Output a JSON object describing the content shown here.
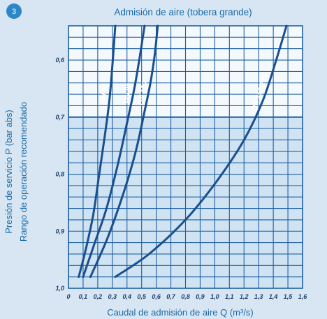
{
  "badge": "3",
  "chart_data": {
    "type": "line",
    "title": "Admisión de aire (tobera grande)",
    "xlabel": "Caudal de admisión de aire Q (m³/s)",
    "ylabel": "Presión de servicio P (bar abs)",
    "ylabel2": "Rango de operación recomendado",
    "xlim": [
      0,
      1.6
    ],
    "ylim": [
      1.0,
      0.54
    ],
    "y_inverted": true,
    "x_ticks": [
      "0",
      "0,1",
      "0,2",
      "0,3",
      "0,4",
      "0,5",
      "0,6",
      "0,7",
      "0,8",
      "0,9",
      "1,0",
      "1,1",
      "1,2",
      "1,3",
      "1,4",
      "1,5",
      "1,6"
    ],
    "y_ticks": [
      "0,6",
      "0,7",
      "0,8",
      "0,9",
      "1,0"
    ],
    "y_tick_values": [
      0.6,
      0.7,
      0.8,
      0.9,
      1.0
    ],
    "recommended_range": [
      0.7,
      1.0
    ],
    "grid": true,
    "series": [
      {
        "name": "DN 50",
        "x": [
          0.07,
          0.12,
          0.17,
          0.21,
          0.25,
          0.28,
          0.3,
          0.32
        ],
        "y": [
          0.98,
          0.93,
          0.87,
          0.8,
          0.73,
          0.67,
          0.61,
          0.54
        ]
      },
      {
        "name": "DN 80",
        "x": [
          0.1,
          0.18,
          0.26,
          0.34,
          0.4,
          0.45,
          0.49,
          0.52
        ],
        "y": [
          0.98,
          0.92,
          0.86,
          0.78,
          0.71,
          0.65,
          0.59,
          0.54
        ]
      },
      {
        "name": "DN 100",
        "x": [
          0.15,
          0.27,
          0.38,
          0.46,
          0.52,
          0.56,
          0.59,
          0.61
        ],
        "y": [
          0.98,
          0.91,
          0.83,
          0.76,
          0.69,
          0.64,
          0.59,
          0.54
        ]
      },
      {
        "name": "DN 150/200",
        "x": [
          0.32,
          0.55,
          0.8,
          1.02,
          1.2,
          1.33,
          1.42,
          1.49
        ],
        "y": [
          0.98,
          0.94,
          0.88,
          0.81,
          0.74,
          0.67,
          0.6,
          0.54
        ]
      }
    ]
  }
}
